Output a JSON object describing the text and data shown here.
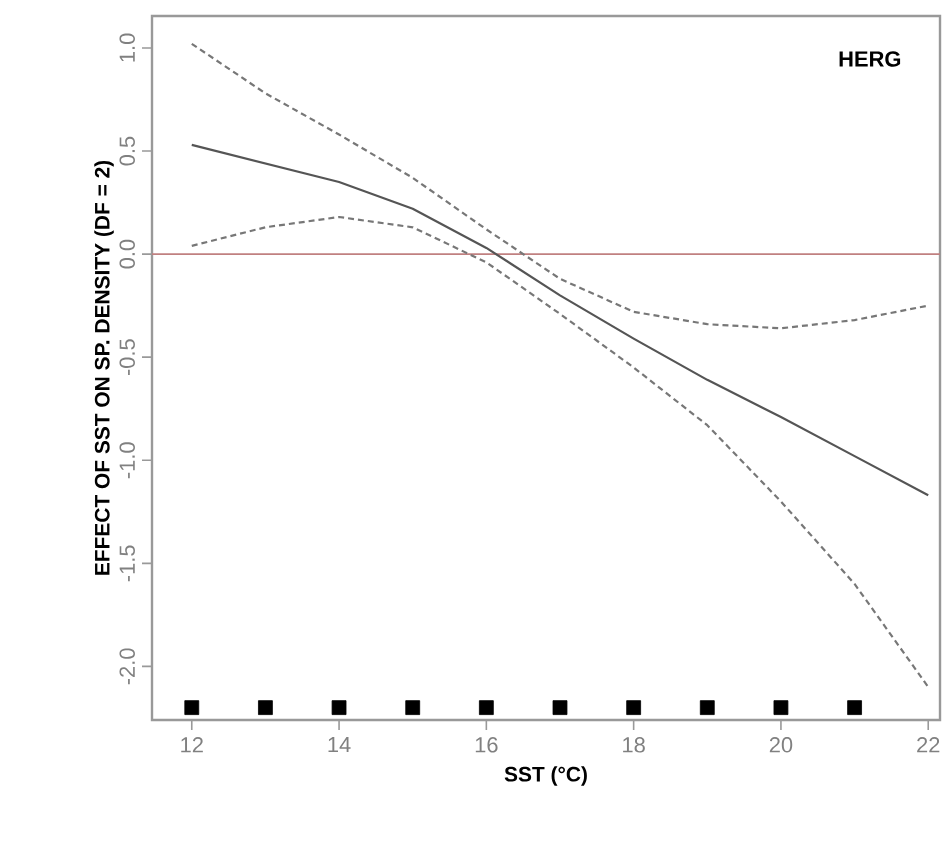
{
  "chart_data": {
    "type": "line",
    "xlabel": "SST (°C)",
    "ylabel": "EFFECT OF SST ON SP. DENSITY (DF = 2)",
    "annotations": [
      "HERG"
    ],
    "x": [
      12,
      13,
      14,
      15,
      16,
      17,
      18,
      19,
      20,
      21,
      22
    ],
    "series": [
      {
        "color": "#555555",
        "line_style": "solid",
        "marker": "none",
        "values": [
          0.53,
          0.44,
          0.35,
          0.22,
          0.03,
          -0.2,
          -0.41,
          -0.61,
          -0.79,
          -0.98,
          -1.17
        ]
      },
      {
        "color": "#777777",
        "line_style": "dashed",
        "marker": "none",
        "values": [
          1.02,
          0.78,
          0.58,
          0.37,
          0.12,
          -0.12,
          -0.28,
          -0.34,
          -0.36,
          -0.32,
          -0.25
        ]
      },
      {
        "color": "#777777",
        "line_style": "dashed",
        "marker": "none",
        "values": [
          0.04,
          0.13,
          0.18,
          0.13,
          -0.04,
          -0.29,
          -0.55,
          -0.83,
          -1.2,
          -1.6,
          -2.1
        ]
      },
      {
        "type": "scatter",
        "color": "#000000",
        "marker": "square",
        "x": [
          12,
          13,
          14,
          15,
          16,
          17,
          18,
          19,
          20,
          21
        ],
        "values": [
          -2.2,
          -2.2,
          -2.2,
          -2.2,
          -2.2,
          -2.2,
          -2.2,
          -2.2,
          -2.2,
          -2.2
        ]
      }
    ],
    "ref_lines": [
      {
        "axis": "y",
        "value": 0,
        "color": "#c08080"
      }
    ],
    "xlim": [
      11.46,
      22.16
    ],
    "ylim": [
      -2.26,
      1.155
    ],
    "xticks": [
      12,
      14,
      16,
      18,
      20,
      22
    ],
    "yticks": [
      {
        "value": -2,
        "label": "-2.0"
      },
      {
        "value": -1.5,
        "label": "-1.5"
      },
      {
        "value": -1,
        "label": "-1.0"
      },
      {
        "value": -0.5,
        "label": "-0.5"
      },
      {
        "value": 0,
        "label": "0.0"
      },
      {
        "value": 0.5,
        "label": "0.5"
      },
      {
        "value": 1,
        "label": "1.0"
      }
    ]
  }
}
